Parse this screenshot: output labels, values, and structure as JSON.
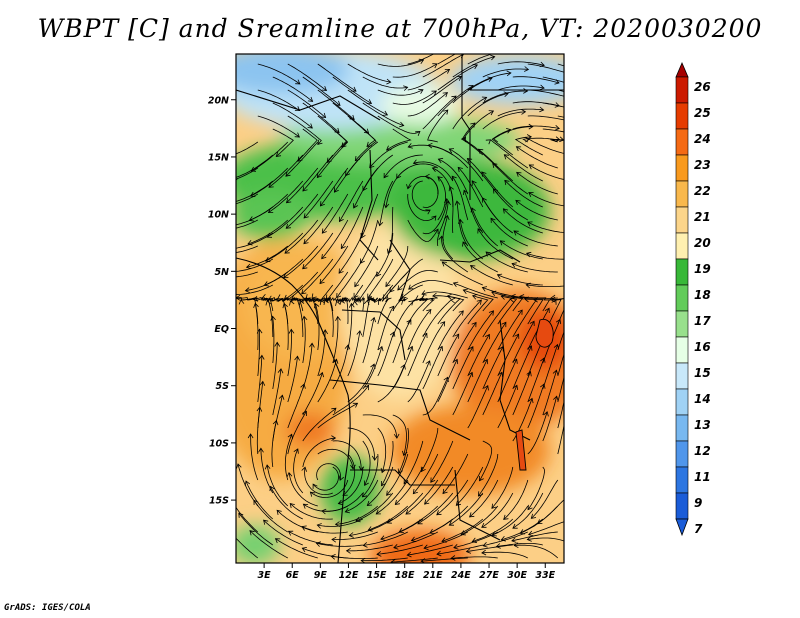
{
  "title": "WBPT [C] and Sreamline at 700hPa, VT: 2020030200",
  "credit": "GrADS: IGES/COLA",
  "map": {
    "region": "Central and Southern Africa",
    "variable": "Wet-bulb potential temperature",
    "units": "C",
    "level": "700hPa",
    "valid_time": "2020030200",
    "lon_range": [
      0,
      35
    ],
    "lat_range": [
      -20.5,
      24
    ],
    "lat_ticks": [
      {
        "value": 20,
        "label": "20N"
      },
      {
        "value": 15,
        "label": "15N"
      },
      {
        "value": 10,
        "label": "10N"
      },
      {
        "value": 5,
        "label": "5N"
      },
      {
        "value": 0,
        "label": "EQ"
      },
      {
        "value": -5,
        "label": "5S"
      },
      {
        "value": -10,
        "label": "10S"
      },
      {
        "value": -15,
        "label": "15S"
      }
    ],
    "lon_ticks": [
      {
        "value": 3,
        "label": "3E"
      },
      {
        "value": 6,
        "label": "6E"
      },
      {
        "value": 9,
        "label": "9E"
      },
      {
        "value": 12,
        "label": "12E"
      },
      {
        "value": 15,
        "label": "15E"
      },
      {
        "value": 18,
        "label": "18E"
      },
      {
        "value": 21,
        "label": "21E"
      },
      {
        "value": 24,
        "label": "24E"
      },
      {
        "value": 27,
        "label": "27E"
      },
      {
        "value": 30,
        "label": "30E"
      },
      {
        "value": 33,
        "label": "33E"
      }
    ]
  },
  "colorbar": {
    "levels": [
      "26",
      "25",
      "24",
      "23",
      "22",
      "21",
      "20",
      "19",
      "18",
      "17",
      "16",
      "15",
      "14",
      "13",
      "12",
      "11",
      "9",
      "7"
    ],
    "colors": [
      "#a50000",
      "#cc1a00",
      "#e63c00",
      "#f56a14",
      "#f99a1e",
      "#f9b84c",
      "#fcd58a",
      "#fff0b0",
      "#38b838",
      "#62cc5a",
      "#98e08c",
      "#e6ffe6",
      "#c8e8fa",
      "#a0d2f5",
      "#78b8f0",
      "#5096eb",
      "#2d76e1",
      "#1a5cd8"
    ]
  }
}
